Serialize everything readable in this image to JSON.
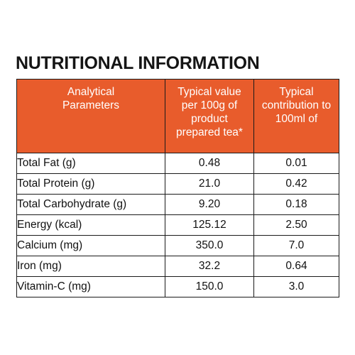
{
  "title": "NUTRITIONAL INFORMATION",
  "colors": {
    "header_bg": "#e85c2c",
    "header_text": "#ffffff",
    "border": "#1a1a1a"
  },
  "table": {
    "headers": [
      [
        "Analytical",
        "Parameters"
      ],
      [
        "Typical value",
        "per 100g of",
        "product",
        "prepared tea*"
      ],
      [
        "Typical",
        "contribution to",
        "100ml of"
      ]
    ],
    "rows": [
      {
        "parameter": "Total Fat (g)",
        "per_100g": "0.48",
        "per_100ml": "0.01"
      },
      {
        "parameter": "Total Protein (g)",
        "per_100g": "21.0",
        "per_100ml": "0.42"
      },
      {
        "parameter": "Total Carbohydrate (g)",
        "per_100g": "9.20",
        "per_100ml": "0.18"
      },
      {
        "parameter": "Energy (kcal)",
        "per_100g": "125.12",
        "per_100ml": "2.50"
      },
      {
        "parameter": "Calcium (mg)",
        "per_100g": "350.0",
        "per_100ml": "7.0"
      },
      {
        "parameter": "Iron (mg)",
        "per_100g": "32.2",
        "per_100ml": "0.64"
      },
      {
        "parameter": "Vitamin-C (mg)",
        "per_100g": "150.0",
        "per_100ml": "3.0"
      }
    ]
  }
}
